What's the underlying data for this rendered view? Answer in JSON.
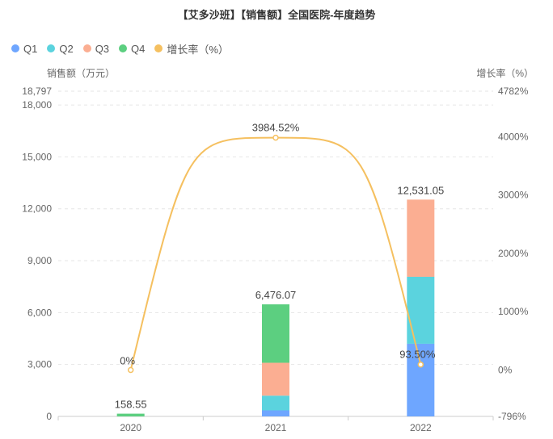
{
  "chart_data": {
    "type": "bar",
    "title": "【艾多沙班】【销售额】全国医院-年度趋势",
    "categories": [
      "2020",
      "2021",
      "2022"
    ],
    "series": [
      {
        "name": "Q1",
        "type": "bar",
        "stack": "sales",
        "color": "#6ea6ff",
        "values": [
          0,
          350,
          4200
        ]
      },
      {
        "name": "Q2",
        "type": "bar",
        "stack": "sales",
        "color": "#5bd3de",
        "values": [
          0,
          850,
          3870
        ]
      },
      {
        "name": "Q3",
        "type": "bar",
        "stack": "sales",
        "color": "#fbae92",
        "values": [
          0,
          1900,
          4461.05
        ]
      },
      {
        "name": "Q4",
        "type": "bar",
        "stack": "sales",
        "color": "#5ccf80",
        "values": [
          158.55,
          3376.07,
          0
        ]
      },
      {
        "name": "增长率（%）",
        "type": "line",
        "color": "#f5c060",
        "axis": "right",
        "values": [
          0,
          3984.52,
          93.5
        ]
      }
    ],
    "totals": [
      "158.55",
      "6,476.07",
      "12,531.05"
    ],
    "line_labels": [
      "0%",
      "3984.52%",
      "93.50%"
    ],
    "y_left": {
      "label": "销售额（万元）",
      "min": 0,
      "max": 18797,
      "ticks": [
        "0",
        "3,000",
        "6,000",
        "9,000",
        "12,000",
        "15,000",
        "18,000",
        "18,797"
      ],
      "tick_values": [
        0,
        3000,
        6000,
        9000,
        12000,
        15000,
        18000,
        18797
      ]
    },
    "y_right": {
      "label": "增长率（%）",
      "min": -796,
      "max": 4782,
      "ticks": [
        "-796%",
        "0%",
        "1000%",
        "2000%",
        "3000%",
        "4000%",
        "4782%"
      ],
      "tick_values": [
        -796,
        0,
        1000,
        2000,
        3000,
        4000,
        4782
      ]
    },
    "grid": true,
    "legend_position": "top-left"
  }
}
